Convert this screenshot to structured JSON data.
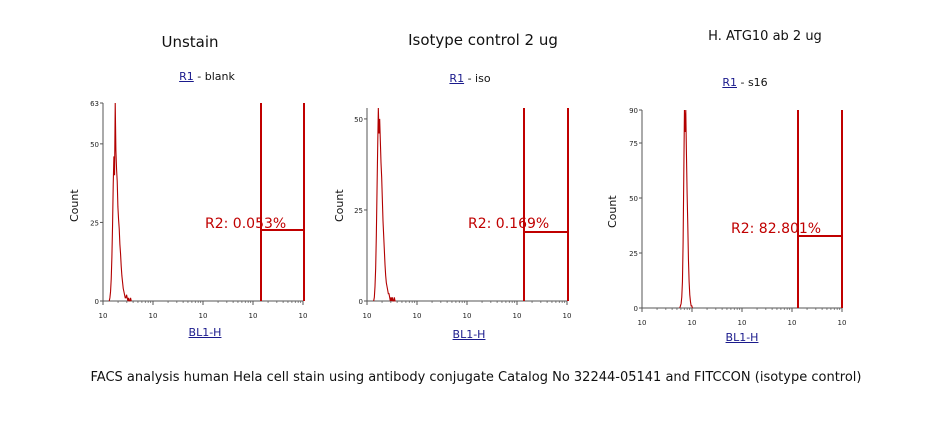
{
  "caption": "FACS analysis human Hela cell stain using antibody conjugate Catalog No 32244-05141 and FITCCON (isotype control)",
  "colors": {
    "histogram": "#b20000",
    "gate": "#c00000",
    "axis": "#555555",
    "gate_label_link": "#1a1a8c"
  },
  "chart_data": [
    {
      "type": "area",
      "title": "Unstain",
      "gate_name": "R1",
      "gate_suffix": " - blank",
      "xlabel": "BL1-H",
      "ylabel": "Count",
      "x_scale": "log",
      "xlim": [
        1,
        10
      ],
      "x_ticks": [
        "10",
        "10",
        "10",
        "10",
        "10"
      ],
      "ylim": [
        0,
        63
      ],
      "y_ticks": [
        0,
        25,
        50,
        63
      ],
      "region_label": "R2: 0.053%",
      "histogram": {
        "x": [
          1.28,
          1.31,
          1.34,
          1.37,
          1.4,
          1.43,
          1.46,
          1.49,
          1.52,
          1.55,
          1.58,
          1.61,
          1.64,
          1.67,
          1.7,
          1.73,
          1.76,
          1.79,
          1.82,
          1.85,
          1.88,
          1.91,
          1.94,
          1.97,
          2.0,
          2.03,
          2.06,
          2.09,
          2.12,
          2.15,
          2.18,
          2.21,
          2.24,
          2.27
        ],
        "y": [
          0,
          1,
          3,
          7,
          14,
          24,
          37,
          46,
          40,
          63,
          48,
          42,
          38,
          30,
          26,
          23,
          18,
          15,
          11,
          8,
          6,
          4,
          3,
          2,
          1,
          1,
          2,
          1,
          0,
          1,
          0,
          0,
          1,
          0
        ]
      }
    },
    {
      "type": "area",
      "title": "Isotype control 2 ug",
      "gate_name": "R1",
      "gate_suffix": " - iso",
      "xlabel": "BL1-H",
      "ylabel": "Count",
      "x_scale": "log",
      "xlim": [
        1,
        10
      ],
      "x_ticks": [
        "10",
        "10",
        "10",
        "10",
        "10"
      ],
      "ylim": [
        0,
        53
      ],
      "y_ticks": [
        0,
        25,
        50
      ],
      "region_label": "R2: 0.169%",
      "histogram": {
        "x": [
          1.3,
          1.33,
          1.36,
          1.39,
          1.42,
          1.45,
          1.48,
          1.51,
          1.54,
          1.57,
          1.6,
          1.63,
          1.66,
          1.69,
          1.72,
          1.75,
          1.78,
          1.81,
          1.84,
          1.87,
          1.9,
          1.93,
          1.96,
          1.99,
          2.02,
          2.05,
          2.08,
          2.11,
          2.14,
          2.17,
          2.2,
          2.23,
          2.26,
          2.29
        ],
        "y": [
          0,
          1,
          4,
          9,
          18,
          30,
          42,
          53,
          46,
          50,
          44,
          38,
          34,
          28,
          22,
          18,
          14,
          10,
          7,
          5,
          4,
          3,
          2,
          2,
          1,
          0,
          1,
          0,
          1,
          0,
          0,
          1,
          0,
          0
        ]
      }
    },
    {
      "type": "area",
      "title": "H. ATG10 ab 2 ug",
      "gate_name": "R1",
      "gate_suffix": " - s16",
      "xlabel": "BL1-H",
      "ylabel": "Count",
      "x_scale": "log",
      "xlim": [
        1,
        10
      ],
      "x_ticks": [
        "10",
        "10",
        "10",
        "10",
        "10"
      ],
      "ylim": [
        0,
        90
      ],
      "y_ticks": [
        0,
        25,
        50,
        75,
        90
      ],
      "region_label": "R2: 82.801%",
      "histogram": {
        "x": [
          2.7,
          2.73,
          2.76,
          2.79,
          2.82,
          2.85,
          2.88,
          2.91,
          2.94,
          2.97,
          3.0,
          3.03,
          3.06,
          3.09,
          3.12,
          3.15,
          3.18,
          3.21,
          3.24,
          3.27
        ],
        "y": [
          0,
          1,
          2,
          5,
          12,
          30,
          60,
          90,
          80,
          90,
          70,
          52,
          38,
          22,
          12,
          6,
          3,
          1,
          1,
          0
        ]
      }
    }
  ]
}
